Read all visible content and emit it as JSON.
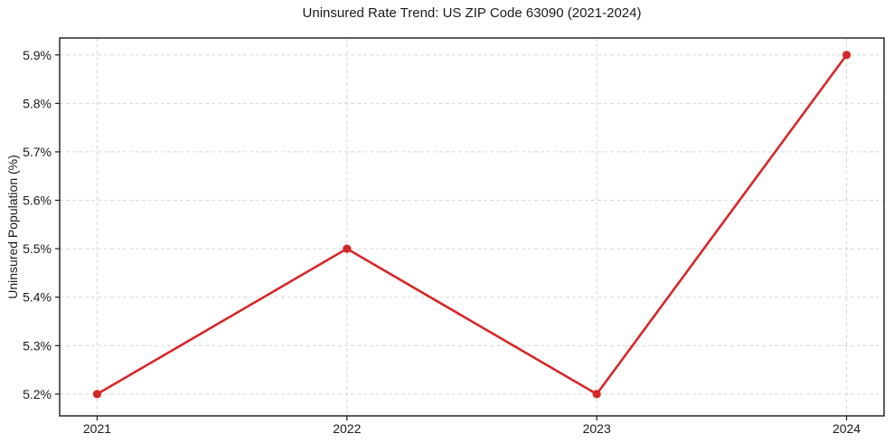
{
  "chart_data": {
    "type": "line",
    "title": "Uninsured Rate Trend: US ZIP Code 63090 (2021-2024)",
    "xlabel": "",
    "ylabel": "Uninsured Population (%)",
    "x": [
      2021,
      2022,
      2023,
      2024
    ],
    "values": [
      5.2,
      5.5,
      5.2,
      5.9
    ],
    "xlim": [
      2020.85,
      2024.15
    ],
    "ylim": [
      5.155,
      5.935
    ],
    "xticks": {
      "values": [
        2021,
        2022,
        2023,
        2024
      ],
      "labels": [
        "2021",
        "2022",
        "2023",
        "2024"
      ]
    },
    "yticks": {
      "values": [
        5.2,
        5.3,
        5.4,
        5.5,
        5.6,
        5.7,
        5.8,
        5.9
      ],
      "labels": [
        "5.2%",
        "5.3%",
        "5.4%",
        "5.5%",
        "5.6%",
        "5.7%",
        "5.8%",
        "5.9%"
      ]
    },
    "grid": true,
    "legend": false,
    "colors": {
      "line": "#d62728",
      "marker": "#d62728",
      "grid": "#d6d6d6",
      "axis": "#1a1a1a",
      "text": "#1a1a1a",
      "background": "#ffffff"
    }
  }
}
